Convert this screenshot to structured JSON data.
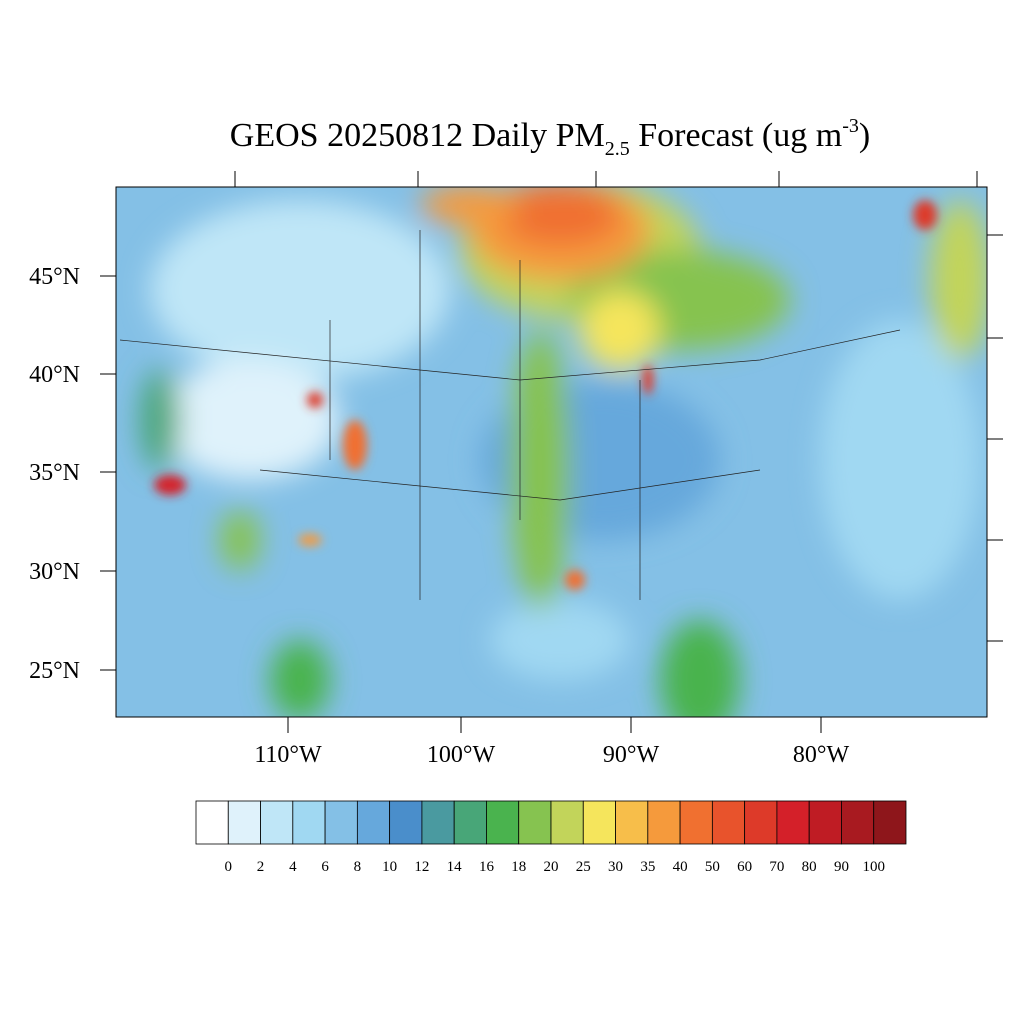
{
  "title": {
    "main": "GEOS 20250812 Daily PM",
    "sub": "2.5",
    "after": " Forecast (ug m",
    "sup": "-3",
    "end": ")"
  },
  "map": {
    "lat_labels": [
      "45°N",
      "40°N",
      "35°N",
      "30°N",
      "25°N"
    ],
    "lon_labels": [
      "110°W",
      "100°W",
      "90°W",
      "80°W"
    ]
  },
  "colorbar": {
    "levels": [
      0,
      2,
      4,
      6,
      8,
      10,
      12,
      14,
      16,
      18,
      20,
      25,
      30,
      35,
      40,
      50,
      60,
      70,
      80,
      90,
      100
    ],
    "colors": [
      "#ffffff",
      "#dff2fb",
      "#bfe6f7",
      "#a0d8f2",
      "#84c0e6",
      "#66a8dc",
      "#4a8ecb",
      "#4a9aa0",
      "#48a678",
      "#4ab34e",
      "#86c350",
      "#c2d45a",
      "#f5e55c",
      "#f7be4a",
      "#f59a3c",
      "#f07030",
      "#e8532c",
      "#dd3a29",
      "#d42029",
      "#bf1c24",
      "#a81a20",
      "#8e161b"
    ]
  }
}
